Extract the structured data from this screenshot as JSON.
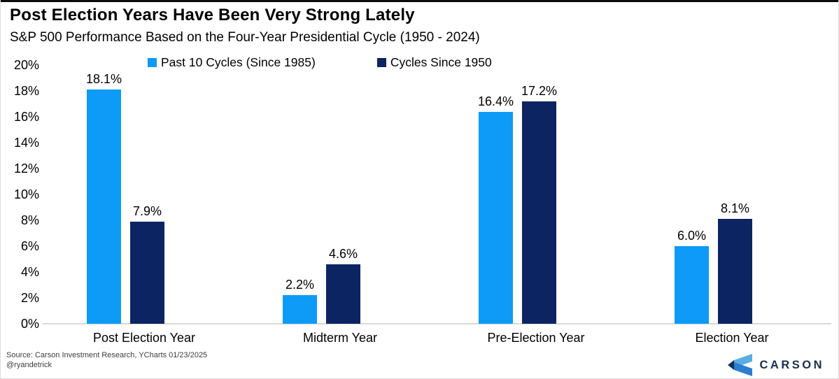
{
  "header": {
    "title": "Post Election Years Have Been Very Strong Lately",
    "subtitle": "S&P 500 Performance Based on the Four-Year Presidential Cycle (1950 - 2024)"
  },
  "chart_data": {
    "type": "bar",
    "categories": [
      "Post Election Year",
      "Midterm Year",
      "Pre-Election Year",
      "Election Year"
    ],
    "series": [
      {
        "name": "Past 10 Cycles (Since 1985)",
        "color": "#0d9bf7",
        "values": [
          18.1,
          2.2,
          16.4,
          6.0
        ]
      },
      {
        "name": "Cycles Since 1950",
        "color": "#0d2462",
        "values": [
          7.9,
          4.6,
          17.2,
          8.1
        ]
      }
    ],
    "value_suffix": "%",
    "ylim": [
      0,
      20
    ],
    "y_tick_step": 2,
    "y_ticks": [
      "0%",
      "2%",
      "4%",
      "6%",
      "8%",
      "10%",
      "12%",
      "14%",
      "16%",
      "18%",
      "20%"
    ],
    "grid": false,
    "legend_position": "top",
    "data_labels": true
  },
  "footer": {
    "source_line1": "Source: Carson Investment Research, YCharts 01/23/2025",
    "source_line2": "@ryandetrick",
    "logo_text": "CARSON",
    "logo_icon": "carson-chevron-icon",
    "logo_colors": {
      "light": "#5aaee2",
      "medium": "#2b7fd0",
      "dark": "#13335a",
      "text": "#182f4e"
    }
  }
}
